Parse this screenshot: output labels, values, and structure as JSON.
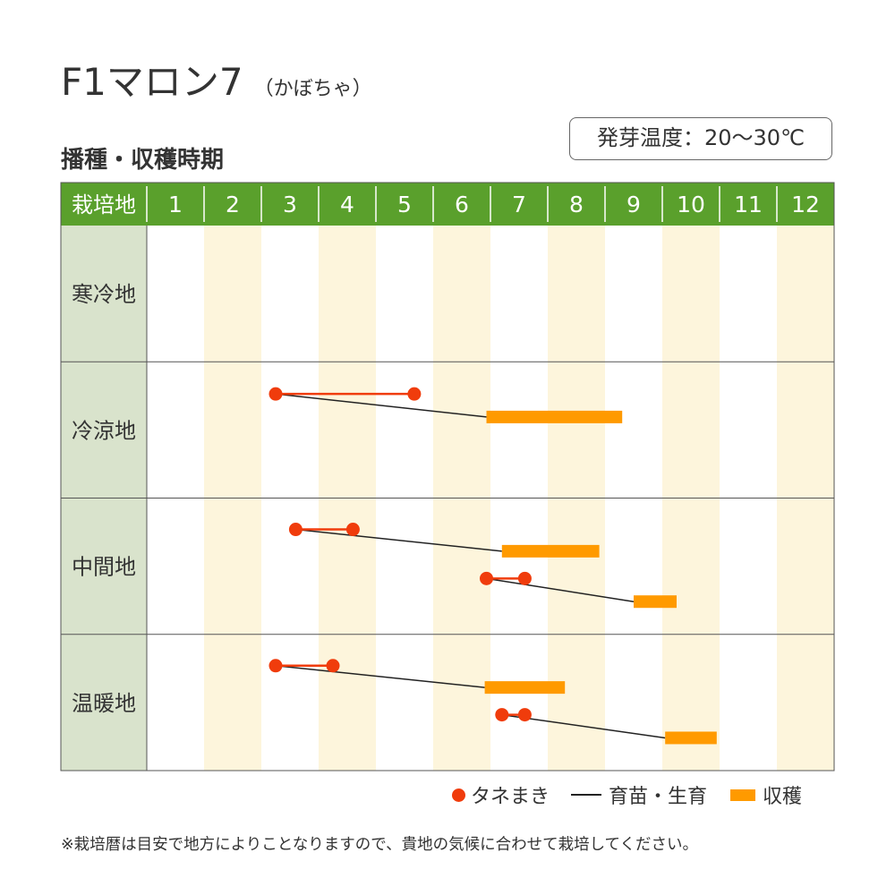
{
  "header": {
    "title": "F1マロン7",
    "subtitle": "（かぼちゃ）",
    "section": "播種・収穫時期",
    "temperature": "発芽温度：20～30℃"
  },
  "colors": {
    "header_green": "#5aa02c",
    "region_bg": "#d9e3cc",
    "stripe": "#fdf5dc",
    "sowing": "#f03c0c",
    "harvest": "#ff9a00",
    "growing": "#222222"
  },
  "chart_data": {
    "type": "gantt",
    "corner_label": "栽培地",
    "months": [
      "1",
      "2",
      "3",
      "4",
      "5",
      "6",
      "7",
      "8",
      "9",
      "10",
      "11",
      "12"
    ],
    "regions": [
      {
        "name": "寒冷地",
        "schedules": []
      },
      {
        "name": "冷涼地",
        "schedules": [
          {
            "sow": [
              3.25,
              5.67
            ],
            "harvest": [
              6.93,
              9.3
            ]
          }
        ]
      },
      {
        "name": "中間地",
        "schedules": [
          {
            "sow": [
              3.6,
              4.6
            ],
            "harvest": [
              7.2,
              8.9
            ]
          },
          {
            "sow": [
              6.93,
              7.6
            ],
            "harvest": [
              9.5,
              10.25
            ]
          }
        ]
      },
      {
        "name": "温暖地",
        "schedules": [
          {
            "sow": [
              3.25,
              4.25
            ],
            "harvest": [
              6.9,
              8.3
            ]
          },
          {
            "sow": [
              7.2,
              7.6
            ],
            "harvest": [
              10.05,
              10.95
            ]
          }
        ]
      }
    ],
    "legend": [
      {
        "label": "タネまき",
        "kind": "sowing"
      },
      {
        "label": "育苗・生育",
        "kind": "growing"
      },
      {
        "label": "収穫",
        "kind": "harvest"
      }
    ]
  },
  "footnote": "※栽培暦は目安で地方によりことなりますので、貴地の気候に合わせて栽培してください。"
}
